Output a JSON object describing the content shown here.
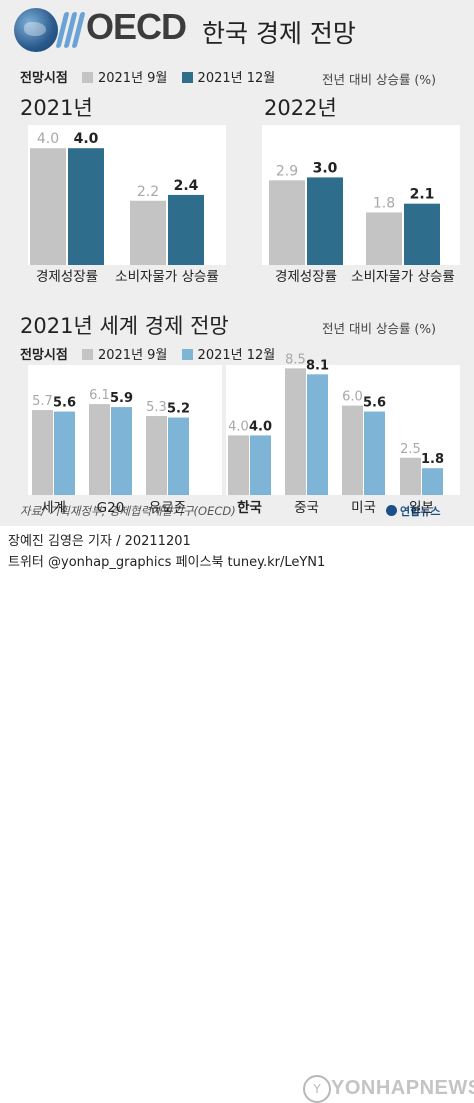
{
  "header": {
    "logo_text": "OECD",
    "title": "한국 경제 전망"
  },
  "legend_top": {
    "label": "전망시점",
    "prev": "2021년 9월",
    "curr": "2021년 12월",
    "unit": "전년 대비 상승률 (%)"
  },
  "legend_bottom": {
    "label": "전망시점",
    "prev": "2021년 9월",
    "curr": "2021년 12월",
    "unit": "전년 대비 상승률 (%)"
  },
  "colors": {
    "prev": "#c4c4c4",
    "curr_korea": "#2f6d8d",
    "curr_world": "#7eb5d6",
    "background": "#eeeeee"
  },
  "section_world_title": "2021년 세계 경제 전망",
  "source": "자료/ 기획재정부, 경제협력개발기구(OECD)",
  "badge": "연합뉴스",
  "credit": {
    "line1": "장예진 김영은 기자 / 20211201",
    "line2": "트위터 @yonhap_graphics  페이스북 tuney.kr/LeYN1"
  },
  "watermark": "YONHAPNEWS",
  "chart_data": [
    {
      "type": "bar",
      "title": "2021년",
      "categories": [
        "경제성장률",
        "소비자물가 상승률"
      ],
      "series": [
        {
          "name": "2021년 9월",
          "values": [
            4.0,
            2.2
          ]
        },
        {
          "name": "2021년 12월",
          "values": [
            4.0,
            2.4
          ]
        }
      ],
      "ylim": [
        0,
        4.5
      ]
    },
    {
      "type": "bar",
      "title": "2022년",
      "categories": [
        "경제성장률",
        "소비자물가 상승률"
      ],
      "series": [
        {
          "name": "2021년 9월",
          "values": [
            2.9,
            1.8
          ]
        },
        {
          "name": "2021년 12월",
          "values": [
            3.0,
            2.1
          ]
        }
      ],
      "ylim": [
        0,
        4.5
      ]
    },
    {
      "type": "bar",
      "title": "2021년 세계 경제 전망",
      "categories": [
        "세계",
        "G20",
        "유로존",
        "한국",
        "중국",
        "미국",
        "일본"
      ],
      "series": [
        {
          "name": "2021년 9월",
          "values": [
            5.7,
            6.1,
            5.3,
            4.0,
            8.5,
            6.0,
            2.5
          ]
        },
        {
          "name": "2021년 12월",
          "values": [
            5.6,
            5.9,
            5.2,
            4.0,
            8.1,
            5.6,
            1.8
          ]
        }
      ],
      "ylim": [
        0,
        9
      ]
    }
  ]
}
